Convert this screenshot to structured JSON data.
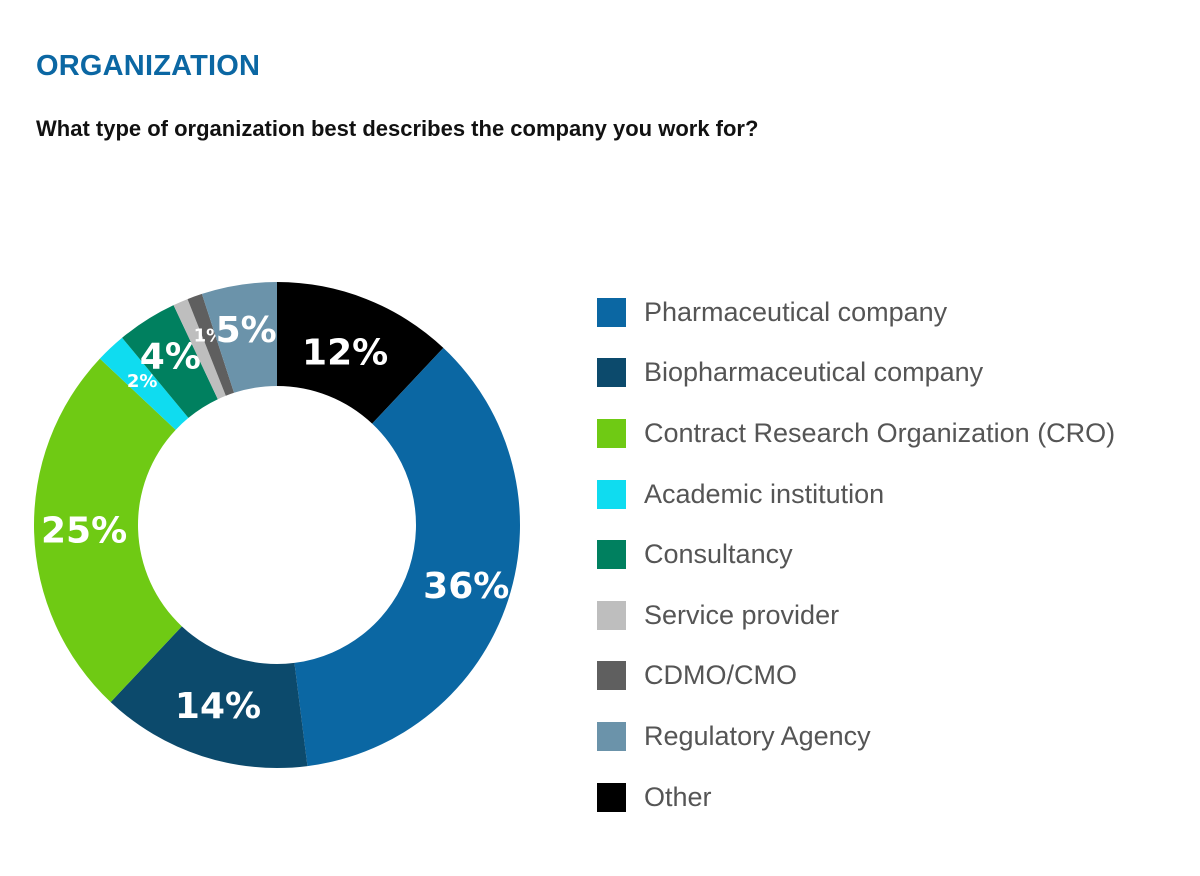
{
  "chart_data": {
    "type": "pie",
    "title": "ORGANIZATION",
    "subtitle": "What type of organization best describes the company you work for?",
    "unit": "%",
    "slices": [
      {
        "label": "Other",
        "value": 12,
        "display": "12%",
        "color": "#000000"
      },
      {
        "label": "Pharmaceutical company",
        "value": 36,
        "display": "36%",
        "color": "#0b67a3"
      },
      {
        "label": "Biopharmaceutical company",
        "value": 14,
        "display": "14%",
        "color": "#0c4a6c"
      },
      {
        "label": "Contract Research Organization (CRO)",
        "value": 25,
        "display": "25%",
        "color": "#6fca14"
      },
      {
        "label": "Academic institution",
        "value": 2,
        "display": "2%",
        "color": "#0fdcf0"
      },
      {
        "label": "Consultancy",
        "value": 4,
        "display": "4%",
        "color": "#00805f"
      },
      {
        "label": "Service provider",
        "value": 1,
        "display": "",
        "color": "#bebebe"
      },
      {
        "label": "CDMO/CMO",
        "value": 1,
        "display": "1%",
        "color": "#5f5f5f"
      },
      {
        "label": "Regulatory Agency",
        "value": 5,
        "display": "5%",
        "color": "#6b93aa"
      }
    ],
    "legend": [
      {
        "label": "Pharmaceutical company",
        "color": "#0b67a3"
      },
      {
        "label": "Biopharmaceutical company",
        "color": "#0c4a6c"
      },
      {
        "label": "Contract Research Organization (CRO)",
        "color": "#6fca14"
      },
      {
        "label": "Academic institution",
        "color": "#0fdcf0"
      },
      {
        "label": "Consultancy",
        "color": "#00805f"
      },
      {
        "label": "Service provider",
        "color": "#bebebe"
      },
      {
        "label": "CDMO/CMO",
        "color": "#5f5f5f"
      },
      {
        "label": "Regulatory Agency",
        "color": "#6b93aa"
      },
      {
        "label": "Other",
        "color": "#000000"
      }
    ],
    "legend_position": "right"
  }
}
